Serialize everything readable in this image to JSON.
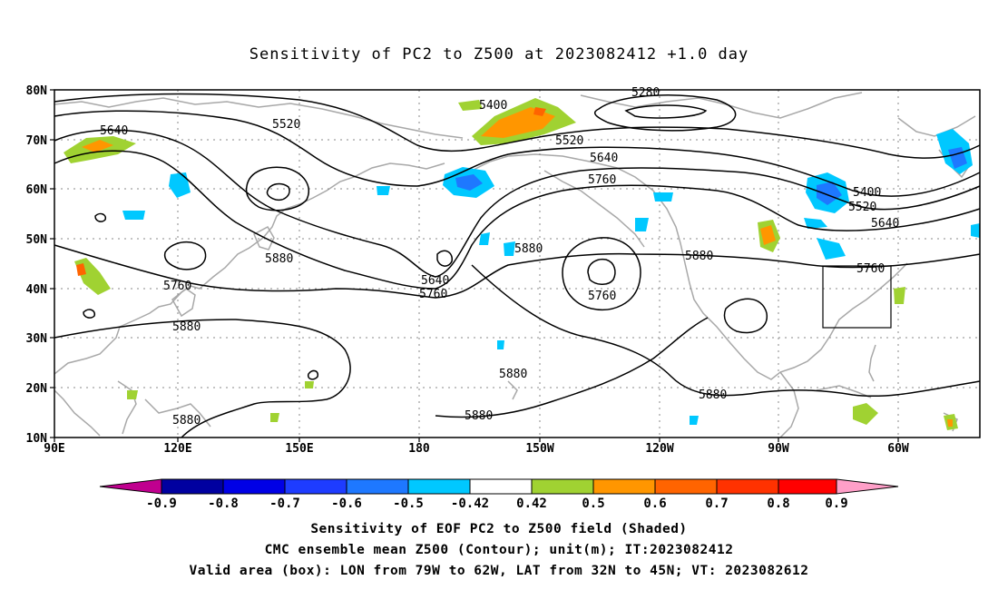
{
  "title": "Sensitivity of PC2 to Z500 at 2023082412 +1.0 day",
  "lat_labels": [
    "80N",
    "70N",
    "60N",
    "50N",
    "40N",
    "30N",
    "20N",
    "10N"
  ],
  "lon_labels": [
    "90E",
    "120E",
    "150E",
    "180",
    "150W",
    "120W",
    "90W",
    "60W"
  ],
  "colorbar": {
    "labels": [
      "-0.9",
      "-0.8",
      "-0.7",
      "-0.6",
      "-0.5",
      "-0.42",
      "0.42",
      "0.5",
      "0.6",
      "0.7",
      "0.8",
      "0.9"
    ],
    "colors": [
      "#c0008f",
      "#0000a0",
      "#0000e6",
      "#1e3cff",
      "#1e78ff",
      "#00c8ff",
      "#ffffff",
      "#a0d232",
      "#ff9600",
      "#ff6400",
      "#ff3200",
      "#ff0000",
      "#ff9fc8"
    ]
  },
  "contour_labels": [
    "5640",
    "5520",
    "5400",
    "5280",
    "5520",
    "5640",
    "5760",
    "5400",
    "5520",
    "5640",
    "5760",
    "5880",
    "5880",
    "5880",
    "5640",
    "5760",
    "5760",
    "5880",
    "5880",
    "5880",
    "5760",
    "5880",
    "5880"
  ],
  "valid_box": {
    "lon_from": "79W",
    "lon_to": "62W",
    "lat_from": "32N",
    "lat_to": "45N"
  },
  "captions": {
    "line1": "Sensitivity of EOF PC2 to Z500 field (Shaded)",
    "line2": "CMC ensemble mean Z500 (Contour); unit(m); IT:2023082412",
    "line3": "Valid area (box): LON from 79W to 62W, LAT from 32N to 45N; VT: 2023082612"
  }
}
